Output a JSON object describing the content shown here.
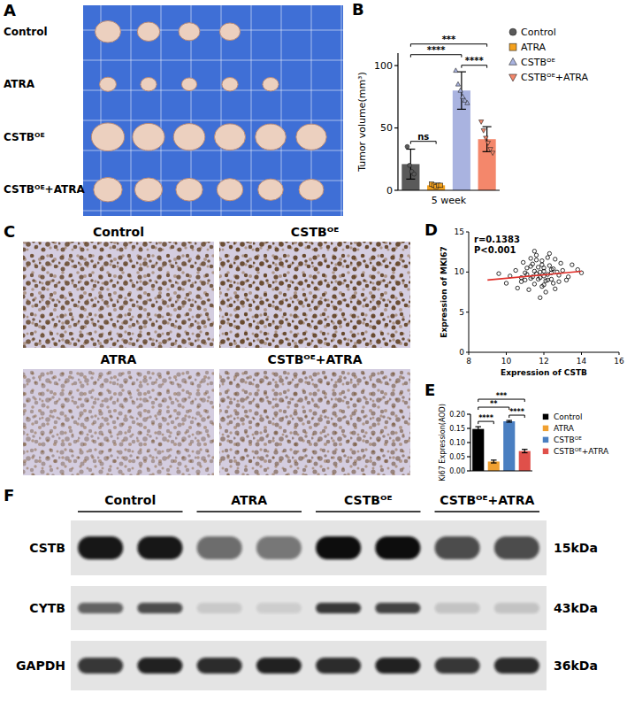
{
  "photo_panel": {
    "letter": "A",
    "labels": [
      "Control",
      "ATRA",
      "CSTBᴼᴱ",
      "CSTBᴼᴱ+ATRA"
    ]
  },
  "chart_data": [
    {
      "letter": "B",
      "type": "bar",
      "categories": [
        "5 week"
      ],
      "ylabel": "Tumor volume(mm³)",
      "ylim": [
        0,
        110
      ],
      "yticks": [
        0,
        50,
        100
      ],
      "grid": false,
      "legend": "right",
      "series": [
        {
          "name": "Control",
          "color": "#5a5a5a",
          "marker": "circle",
          "values": [
            21
          ],
          "errors": [
            12
          ],
          "points": [
            35,
            20,
            15,
            13
          ]
        },
        {
          "name": "ATRA",
          "color": "#f4a11d",
          "marker": "square",
          "values": [
            4
          ],
          "errors": [
            1.5
          ],
          "points": [
            5,
            4,
            3,
            4,
            4
          ]
        },
        {
          "name": "CSTBᴼᴱ",
          "color": "#a9b3e0",
          "marker": "triangle",
          "values": [
            80
          ],
          "errors": [
            15
          ],
          "points": [
            96,
            85,
            80,
            75,
            72,
            70
          ]
        },
        {
          "name": "CSTBᴼᴱ+ATRA",
          "color": "#f4876b",
          "marker": "triangle-down",
          "values": [
            41
          ],
          "errors": [
            10
          ],
          "points": [
            55,
            48,
            42,
            38,
            33,
            30
          ]
        }
      ],
      "annotations": [
        {
          "text": "ns",
          "from": 0,
          "to": 1
        },
        {
          "text": "****",
          "from": 0,
          "to": 2
        },
        {
          "text": "***",
          "from": 0,
          "to": 3
        },
        {
          "text": "****",
          "from": 2,
          "to": 3
        }
      ]
    },
    {
      "letter": "D",
      "type": "scatter",
      "xlabel": "Expression of CSTB",
      "ylabel": "Expression of MKI67",
      "xlim": [
        8,
        16
      ],
      "xticks": [
        8,
        10,
        12,
        14,
        16
      ],
      "ylim": [
        0,
        15
      ],
      "yticks": [
        0,
        5,
        10,
        15
      ],
      "grid": false,
      "marker": "circle",
      "color": "#000000",
      "x": [
        10.2,
        10.5,
        10.8,
        11.0,
        11.1,
        11.3,
        11.4,
        11.5,
        11.6,
        11.7,
        11.8,
        11.9,
        12.0,
        12.1,
        12.2,
        12.3,
        12.4,
        12.5,
        12.6,
        12.8,
        13.0,
        13.2,
        13.5,
        10.9,
        11.2,
        11.6,
        11.9,
        12.2,
        12.5,
        12.9,
        11.4,
        11.8,
        12.1,
        12.4,
        11.0,
        11.5,
        12.0,
        12.7,
        13.3,
        10.6,
        11.3,
        11.7,
        12.3,
        12.6,
        11.9,
        12.0,
        11.6,
        11.1,
        12.8,
        13.8,
        9.6,
        10.0,
        14.0,
        11.5,
        12.2,
        11.8,
        11.3,
        12.4,
        12.0,
        10.8
      ],
      "values": [
        9.5,
        10.2,
        8.8,
        9.9,
        10.5,
        9.2,
        11.0,
        8.5,
        9.8,
        10.6,
        9.3,
        11.4,
        10.1,
        8.9,
        9.7,
        10.8,
        9.1,
        10.4,
        11.6,
        9.6,
        10.2,
        9.0,
        10.9,
        11.2,
        7.8,
        12.1,
        8.2,
        11.8,
        8.6,
        11.1,
        9.4,
        10.0,
        7.5,
        10.3,
        9.0,
        12.6,
        9.5,
        10.0,
        9.4,
        8.0,
        10.7,
        9.1,
        12.3,
        7.9,
        10.9,
        8.4,
        11.5,
        9.7,
        8.8,
        10.3,
        9.8,
        8.6,
        9.9,
        10.1,
        9.0,
        6.8,
        11.7,
        9.9,
        10.5,
        9.3
      ],
      "trend_line": {
        "color": "#e0302a",
        "x": [
          9,
          14
        ],
        "values": [
          9.0,
          10.1
        ]
      },
      "annotations": [
        {
          "text": "r=0.1383"
        },
        {
          "text": "P<0.001"
        }
      ]
    },
    {
      "letter": "E",
      "type": "bar",
      "categories": [
        null
      ],
      "ylabel": "Ki67 Expression(AOD)",
      "ylim": [
        0,
        0.2
      ],
      "yticks": [
        {
          "value": 0,
          "label": "0.00"
        },
        {
          "value": 0.05,
          "label": "0.05"
        },
        {
          "value": 0.1,
          "label": "0.10"
        },
        {
          "value": 0.15,
          "label": "0.15"
        },
        {
          "value": 0.2,
          "label": "0.20"
        }
      ],
      "tick_labels": "y",
      "grid": false,
      "legend": "right",
      "series": [
        {
          "name": "Control",
          "color": "#000000",
          "values": [
            0.148
          ],
          "errors": [
            0.008
          ]
        },
        {
          "name": "ATRA",
          "color": "#f0a030",
          "values": [
            0.033
          ],
          "errors": [
            0.005
          ]
        },
        {
          "name": "CSTBᴼᴱ",
          "color": "#4a7fc1",
          "values": [
            0.175
          ],
          "errors": [
            0.003
          ]
        },
        {
          "name": "CSTBᴼᴱ+ATRA",
          "color": "#e0504a",
          "values": [
            0.07
          ],
          "errors": [
            0.006
          ]
        }
      ],
      "annotations": [
        {
          "text": "****",
          "from": 0,
          "to": 1
        },
        {
          "text": "**",
          "from": 0,
          "to": 2
        },
        {
          "text": "***",
          "from": 0,
          "to": 3
        },
        {
          "text": "****",
          "from": 2,
          "to": 3
        }
      ]
    }
  ],
  "ihc_panel": {
    "letter": "C",
    "titles": [
      "Control",
      "CSTBᴼᴱ",
      "ATRA",
      "CSTBᴼᴱ+ATRA"
    ]
  },
  "blot_panel": {
    "letter": "F",
    "groups": [
      "Control",
      "ATRA",
      "CSTBᴼᴱ",
      "CSTBᴼᴱ+ATRA"
    ],
    "rows": [
      {
        "protein": "CSTB",
        "size": "15kDa",
        "intensities": [
          0.95,
          0.95,
          0.55,
          0.5,
          1.0,
          1.0,
          0.7,
          0.7
        ]
      },
      {
        "protein": "CYTB",
        "size": "43kDa",
        "intensities": [
          0.6,
          0.7,
          0.12,
          0.1,
          0.8,
          0.75,
          0.15,
          0.15
        ]
      },
      {
        "protein": "GAPDH",
        "size": "36kDa",
        "intensities": [
          0.8,
          0.9,
          0.85,
          0.9,
          0.85,
          0.9,
          0.8,
          0.85
        ]
      }
    ]
  }
}
